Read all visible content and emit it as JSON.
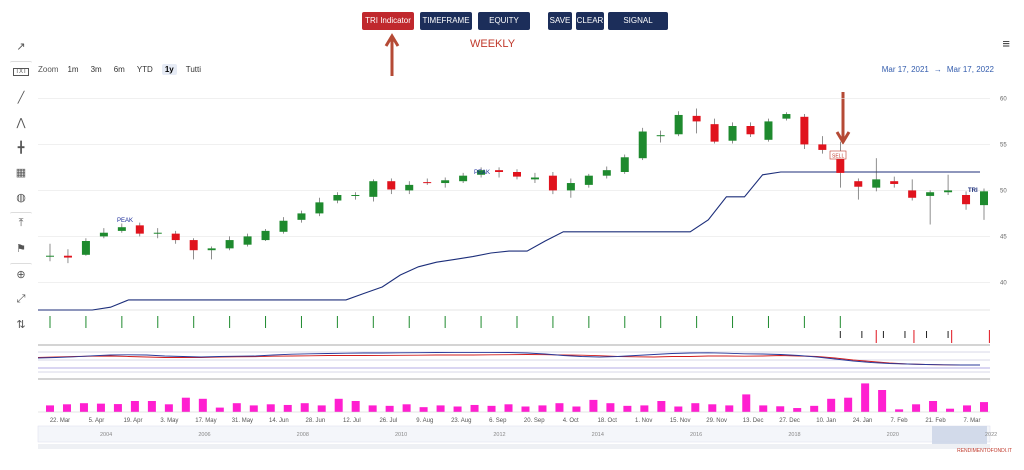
{
  "toolbar": {
    "buttons": [
      {
        "label": "TRI Indicator",
        "active": true
      },
      {
        "label": "TIMEFRAME",
        "active": false
      },
      {
        "label": "EQUITY",
        "active": false
      },
      {
        "label": "SAVE",
        "active": false
      },
      {
        "label": "CLEAR",
        "active": false
      },
      {
        "label": "SIGNAL ON/OFF",
        "active": false
      }
    ]
  },
  "timeframe_label": "WEEKLY",
  "zoom": {
    "label": "Zoom",
    "options": [
      "1m",
      "3m",
      "6m",
      "YTD",
      "1y",
      "Tutti"
    ],
    "selected": "1y"
  },
  "range": {
    "from": "Mar 17, 2021",
    "arrow": "→",
    "to": "Mar 17, 2022"
  },
  "tools": [
    "trendline-icon",
    "text-icon",
    "line-icon",
    "path-icon",
    "crosshair-icon",
    "grid-icon",
    "eye-icon",
    "vertical-line-icon",
    "flag-icon",
    "measure-icon",
    "fullscreen-icon",
    "indicator-icon"
  ],
  "brand": "RENDIMENTOFONDI.IT",
  "colors": {
    "up": "#1e8a2e",
    "down": "#e0131d",
    "tri": "#1c2e7a",
    "volume": "#ff1fd0",
    "button": "#1c2e5a",
    "active_button": "#c0282d",
    "annotation": "#c0392b"
  },
  "chart_data": {
    "type": "candlestick",
    "y_axis": {
      "ticks": [
        40,
        45,
        50,
        55,
        60
      ],
      "range": [
        37,
        62
      ]
    },
    "x_tick_labels": [
      "22. Mar",
      "5. Apr",
      "19. Apr",
      "3. May",
      "17. May",
      "31. May",
      "14. Jun",
      "28. Jun",
      "12. Jul",
      "26. Jul",
      "9. Aug",
      "23. Aug",
      "6. Sep",
      "20. Sep",
      "4. Oct",
      "18. Oct",
      "1. Nov",
      "15. Nov",
      "29. Nov",
      "13. Dec",
      "27. Dec",
      "10. Jan",
      "24. Jan",
      "7. Feb",
      "21. Feb",
      "7. Mar"
    ],
    "navigator_labels": [
      "2004",
      "2006",
      "2008",
      "2010",
      "2012",
      "2014",
      "2016",
      "2018",
      "2020",
      "2022"
    ],
    "candles": [
      [
        42.8,
        42.9,
        44.2,
        42.3
      ],
      [
        42.9,
        42.7,
        43.6,
        42.1
      ],
      [
        43.0,
        44.5,
        44.8,
        42.9
      ],
      [
        45.0,
        45.4,
        45.9,
        44.8
      ],
      [
        45.6,
        46.0,
        46.4,
        45.4
      ],
      [
        46.2,
        45.3,
        46.5,
        45.0
      ],
      [
        45.4,
        45.4,
        45.9,
        44.8
      ],
      [
        45.3,
        44.6,
        45.6,
        44.2
      ],
      [
        44.6,
        43.5,
        44.8,
        42.5
      ],
      [
        43.5,
        43.7,
        43.9,
        42.5
      ],
      [
        43.7,
        44.6,
        45.0,
        43.5
      ],
      [
        44.1,
        45.0,
        45.3,
        43.9
      ],
      [
        44.6,
        45.6,
        45.8,
        44.5
      ],
      [
        45.5,
        46.7,
        47.1,
        45.3
      ],
      [
        46.8,
        47.5,
        47.8,
        46.5
      ],
      [
        47.5,
        48.7,
        49.2,
        47.2
      ],
      [
        48.9,
        49.5,
        49.8,
        48.6
      ],
      [
        49.4,
        49.5,
        49.8,
        49.0
      ],
      [
        49.3,
        51.0,
        51.2,
        48.8
      ],
      [
        51.0,
        50.1,
        51.3,
        49.6
      ],
      [
        50.0,
        50.6,
        51.0,
        49.6
      ],
      [
        50.9,
        50.8,
        51.3,
        50.6
      ],
      [
        50.8,
        51.1,
        51.4,
        50.3
      ],
      [
        51.0,
        51.6,
        51.9,
        50.8
      ],
      [
        51.7,
        52.2,
        52.5,
        51.4
      ],
      [
        52.2,
        52.0,
        52.5,
        51.4
      ],
      [
        52.0,
        51.5,
        52.3,
        51.2
      ],
      [
        51.2,
        51.4,
        51.9,
        50.8
      ],
      [
        51.6,
        50.0,
        52.0,
        49.6
      ],
      [
        50.0,
        50.8,
        51.3,
        49.2
      ],
      [
        50.6,
        51.6,
        51.8,
        50.3
      ],
      [
        51.6,
        52.2,
        52.6,
        51.3
      ],
      [
        52.0,
        53.6,
        53.9,
        51.8
      ],
      [
        53.5,
        56.4,
        56.8,
        53.3
      ],
      [
        55.9,
        56.0,
        56.5,
        55.2
      ],
      [
        56.1,
        58.2,
        58.6,
        55.9
      ],
      [
        58.1,
        57.5,
        58.9,
        56.2
      ],
      [
        57.2,
        55.3,
        57.8,
        55.1
      ],
      [
        55.4,
        57.0,
        57.4,
        55.1
      ],
      [
        57.0,
        56.1,
        57.4,
        55.8
      ],
      [
        55.5,
        57.5,
        57.8,
        55.3
      ],
      [
        57.8,
        58.3,
        58.5,
        57.6
      ],
      [
        58.0,
        55.0,
        58.3,
        54.5
      ],
      [
        55.0,
        54.4,
        55.9,
        54.0
      ],
      [
        53.7,
        51.9,
        55.3,
        50.3
      ],
      [
        51.0,
        50.4,
        51.3,
        49.0
      ],
      [
        50.3,
        51.2,
        53.5,
        49.9
      ],
      [
        51.0,
        50.7,
        51.5,
        50.3
      ],
      [
        50.0,
        49.2,
        51.2,
        48.9
      ],
      [
        49.4,
        49.8,
        50.0,
        46.3
      ],
      [
        49.8,
        50.0,
        51.7,
        49.5
      ],
      [
        49.5,
        48.5,
        49.9,
        47.9
      ],
      [
        48.4,
        49.9,
        50.2,
        46.8
      ]
    ],
    "tri_line": [
      37.0,
      37.0,
      37.0,
      37.0,
      37.3,
      38.1,
      38.1,
      38.1,
      38.1,
      38.1,
      38.1,
      38.1,
      38.1,
      38.1,
      38.1,
      38.1,
      38.1,
      38.1,
      38.8,
      39.5,
      40.8,
      41.7,
      42.2,
      42.5,
      42.8,
      43.2,
      43.4,
      43.4,
      44.5,
      45.5,
      45.5,
      45.5,
      45.5,
      45.5,
      45.5,
      45.5,
      45.5,
      46.8,
      49.3,
      49.3,
      51.7,
      52.0,
      52.0,
      52.0,
      52.0,
      52.0,
      52.0,
      52.0,
      52.0,
      52.0,
      52.0,
      52.0,
      52.0
    ],
    "signals": {
      "green_bars_until": 44,
      "black_bars": [
        45,
        46,
        47,
        48,
        49,
        50
      ],
      "red_bars": [
        51,
        52,
        53,
        54,
        55
      ]
    },
    "oscillator": {
      "red": [
        0.45,
        0.5,
        0.55,
        0.58,
        0.6,
        0.55,
        0.5,
        0.45,
        0.45,
        0.45,
        0.5,
        0.52,
        0.53,
        0.58,
        0.6,
        0.62,
        0.65,
        0.65,
        0.65,
        0.66,
        0.67,
        0.68,
        0.7,
        0.7,
        0.7,
        0.72,
        0.73,
        0.75,
        0.73,
        0.7,
        0.68,
        0.63,
        0.55,
        0.52,
        0.5,
        0.55,
        0.55,
        0.6,
        0.6,
        0.58,
        0.6,
        0.65,
        0.6,
        0.55,
        0.4,
        0.2,
        0.05,
        -0.1,
        -0.2,
        -0.25,
        -0.28,
        -0.3,
        -0.3
      ],
      "blue": [
        0.4,
        0.45,
        0.52,
        0.62,
        0.7,
        0.72,
        0.7,
        0.6,
        0.55,
        0.5,
        0.55,
        0.58,
        0.6,
        0.7,
        0.78,
        0.82,
        0.85,
        0.88,
        0.9,
        0.9,
        0.92,
        0.93,
        0.95,
        0.96,
        0.96,
        0.96,
        0.95,
        0.9,
        0.8,
        0.65,
        0.55,
        0.5,
        0.55,
        0.65,
        0.75,
        0.85,
        0.9,
        0.92,
        0.88,
        0.82,
        0.8,
        0.75,
        0.65,
        0.5,
        0.3,
        0.1,
        -0.05,
        -0.15,
        -0.2,
        -0.25,
        -0.28,
        -0.3,
        -0.3
      ]
    },
    "volume": [
      3,
      3.5,
      4,
      3.8,
      3.6,
      5,
      5,
      3.5,
      6.5,
      6,
      2,
      4,
      3,
      3.5,
      3.2,
      4,
      3,
      6,
      5,
      3,
      2.8,
      3.5,
      2.2,
      3,
      2.5,
      3.2,
      2.8,
      3.5,
      2.5,
      3,
      4,
      2.5,
      5.5,
      4,
      2.8,
      3,
      5,
      2.5,
      4,
      3.5,
      3,
      8,
      3,
      2.6,
      1.8,
      2.8,
      6,
      6.5,
      13,
      10,
      1.2,
      3.5,
      5,
      1.5,
      3,
      4.5
    ]
  }
}
